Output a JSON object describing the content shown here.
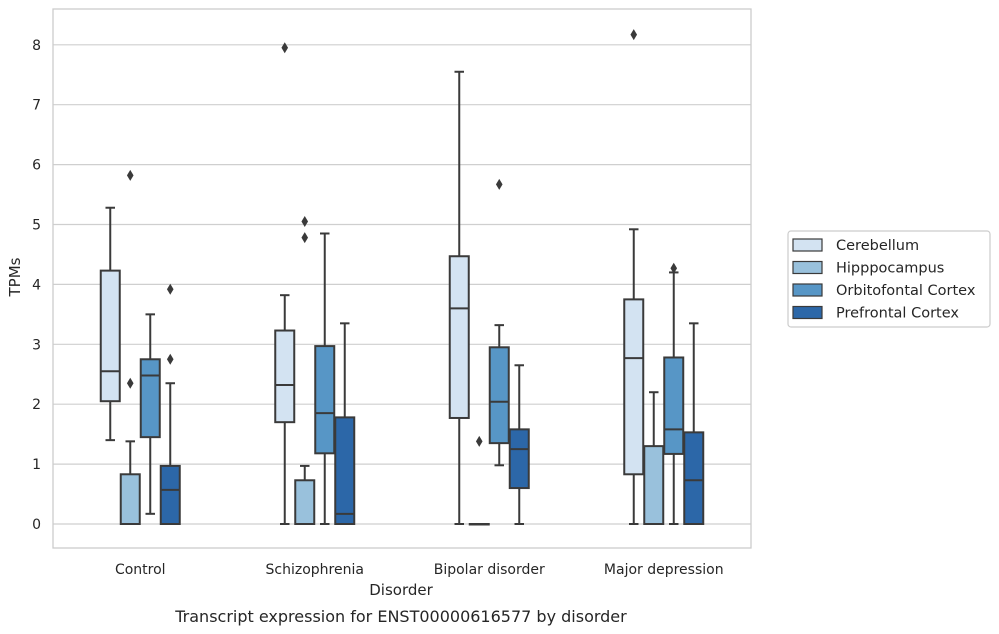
{
  "caption": "Transcript expression for ENST00000616577 by disorder",
  "chart_data": {
    "type": "box",
    "xlabel": "Disorder",
    "ylabel": "TPMs",
    "ylim": [
      -0.4,
      8.6
    ],
    "yticks": [
      0,
      1,
      2,
      3,
      4,
      5,
      6,
      7,
      8
    ],
    "grid": "horizontal",
    "legend_position": "right",
    "categories": [
      "Control",
      "Schizophrenia",
      "Bipolar disorder",
      "Major depression"
    ],
    "series": [
      {
        "name": "Cerebellum",
        "color": "#d3e3f2",
        "boxes": [
          {
            "min": 1.4,
            "q1": 2.05,
            "median": 2.55,
            "q3": 4.23,
            "max": 5.28,
            "outliers": []
          },
          {
            "min": 0.0,
            "q1": 1.7,
            "median": 2.32,
            "q3": 3.23,
            "max": 3.82,
            "outliers": [
              7.95
            ]
          },
          {
            "min": 0.0,
            "q1": 1.77,
            "median": 3.6,
            "q3": 4.47,
            "max": 7.55,
            "outliers": []
          },
          {
            "min": 0.0,
            "q1": 0.83,
            "median": 2.77,
            "q3": 3.75,
            "max": 4.92,
            "outliers": [
              8.17
            ]
          }
        ]
      },
      {
        "name": "Hipppocampus",
        "color": "#99c1dc",
        "boxes": [
          {
            "min": 0.0,
            "q1": 0.0,
            "median": 0.0,
            "q3": 0.83,
            "max": 1.38,
            "outliers": [
              5.82,
              2.35
            ]
          },
          {
            "min": 0.0,
            "q1": 0.0,
            "median": 0.0,
            "q3": 0.73,
            "max": 0.97,
            "outliers": [
              5.05,
              4.78
            ]
          },
          {
            "min": 0.0,
            "q1": 0.0,
            "median": 0.0,
            "q3": 0.0,
            "max": 0.0,
            "outliers": [
              1.38
            ]
          },
          {
            "min": 0.0,
            "q1": 0.0,
            "median": 0.0,
            "q3": 1.3,
            "max": 2.2,
            "outliers": []
          }
        ]
      },
      {
        "name": "Orbitofontal Cortex",
        "color": "#5796c6",
        "boxes": [
          {
            "min": 0.17,
            "q1": 1.45,
            "median": 2.48,
            "q3": 2.75,
            "max": 3.5,
            "outliers": []
          },
          {
            "min": 0.0,
            "q1": 1.18,
            "median": 1.85,
            "q3": 2.97,
            "max": 4.85,
            "outliers": []
          },
          {
            "min": 0.98,
            "q1": 1.35,
            "median": 2.04,
            "q3": 2.95,
            "max": 3.32,
            "outliers": [
              5.67
            ]
          },
          {
            "min": 0.0,
            "q1": 1.17,
            "median": 1.58,
            "q3": 2.78,
            "max": 4.2,
            "outliers": [
              4.27
            ]
          }
        ]
      },
      {
        "name": "Prefrontal Cortex",
        "color": "#2c67a8",
        "boxes": [
          {
            "min": 0.0,
            "q1": 0.0,
            "median": 0.57,
            "q3": 0.97,
            "max": 2.35,
            "outliers": [
              3.92,
              2.75
            ]
          },
          {
            "min": 0.0,
            "q1": 0.0,
            "median": 0.17,
            "q3": 1.78,
            "max": 3.35,
            "outliers": []
          },
          {
            "min": 0.0,
            "q1": 0.6,
            "median": 1.25,
            "q3": 1.58,
            "max": 2.65,
            "outliers": []
          },
          {
            "min": 0.0,
            "q1": 0.0,
            "median": 0.73,
            "q3": 1.53,
            "max": 3.35,
            "outliers": []
          }
        ]
      }
    ]
  }
}
